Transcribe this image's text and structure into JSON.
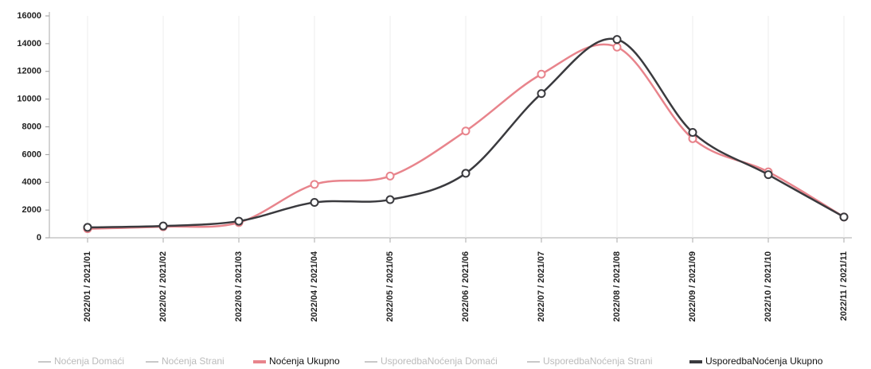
{
  "chart_data": {
    "type": "line",
    "categories": [
      "2022/01 / 2021/01",
      "2022/02 / 2021/02",
      "2022/03 / 2021/03",
      "2022/04 / 2021/04",
      "2022/05 / 2021/05",
      "2022/06 / 2021/06",
      "2022/07 / 2021/07",
      "2022/08 / 2021/08",
      "2022/09 / 2021/09",
      "2022/10 / 2021/10",
      "2022/11 / 2021/11"
    ],
    "series": [
      {
        "name": "Noćenja Domaći",
        "color": "#c8c8c8",
        "hidden": true,
        "values": [
          null,
          null,
          null,
          null,
          null,
          null,
          null,
          null,
          null,
          null,
          null
        ]
      },
      {
        "name": "Noćenja Strani",
        "color": "#c8c8c8",
        "hidden": true,
        "values": [
          null,
          null,
          null,
          null,
          null,
          null,
          null,
          null,
          null,
          null,
          null
        ]
      },
      {
        "name": "Noćenja Ukupno",
        "color": "#e8848c",
        "hidden": false,
        "values": [
          650,
          800,
          1100,
          3850,
          4450,
          7700,
          11800,
          13750,
          7150,
          4750,
          1500
        ]
      },
      {
        "name": "UsporedbaNoćenja Domaći",
        "color": "#c8c8c8",
        "hidden": true,
        "values": [
          null,
          null,
          null,
          null,
          null,
          null,
          null,
          null,
          null,
          null,
          null
        ]
      },
      {
        "name": "UsporedbaNoćenja Strani",
        "color": "#c8c8c8",
        "hidden": true,
        "values": [
          null,
          null,
          null,
          null,
          null,
          null,
          null,
          null,
          null,
          null,
          null
        ]
      },
      {
        "name": "UsporedbaNoćenja Ukupno",
        "color": "#3a3a3e",
        "hidden": false,
        "values": [
          750,
          850,
          1200,
          2550,
          2750,
          4650,
          10400,
          14300,
          7600,
          4550,
          1500
        ]
      }
    ],
    "ylim": [
      0,
      16000
    ],
    "yticks": [
      0,
      2000,
      4000,
      6000,
      8000,
      10000,
      12000,
      14000,
      16000
    ],
    "grid": true
  }
}
